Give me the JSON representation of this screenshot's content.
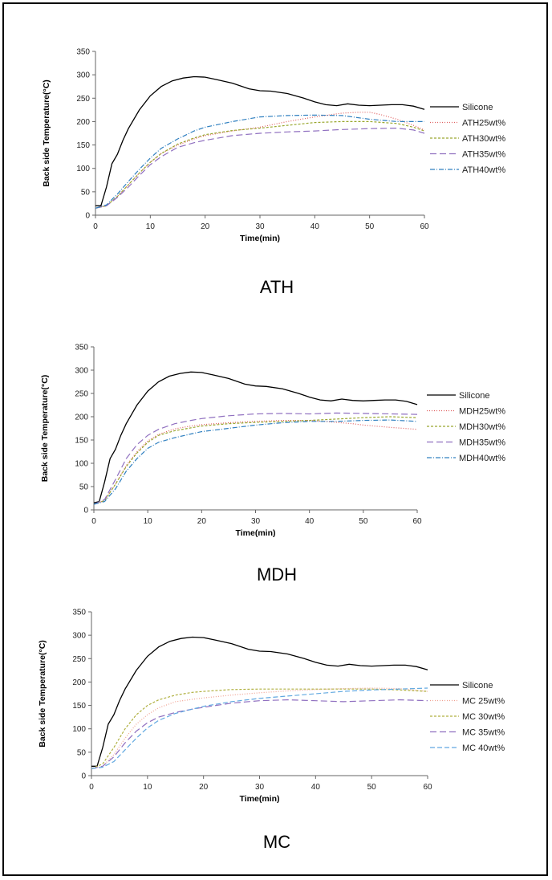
{
  "chart_data": [
    {
      "type": "line",
      "caption": "ATH",
      "xlabel": "Time(min)",
      "ylabel": "Back side Temperature(°C)",
      "xlim": [
        0,
        60
      ],
      "ylim": [
        0,
        350
      ],
      "xticks": [
        0,
        10,
        20,
        30,
        40,
        50,
        60
      ],
      "yticks": [
        0,
        50,
        100,
        150,
        200,
        250,
        300,
        350
      ],
      "legend_position": "right",
      "series": [
        {
          "name": "Silicone",
          "color": "#000000",
          "dash": "",
          "x": [
            0,
            1,
            2,
            3,
            4,
            5,
            6,
            8,
            10,
            12,
            14,
            16,
            18,
            20,
            22,
            25,
            28,
            30,
            32,
            35,
            38,
            40,
            42,
            44,
            46,
            48,
            50,
            52,
            54,
            56,
            58,
            60
          ],
          "y": [
            20,
            20,
            60,
            110,
            130,
            160,
            185,
            225,
            255,
            275,
            287,
            293,
            296,
            295,
            290,
            282,
            270,
            266,
            265,
            260,
            250,
            242,
            236,
            234,
            238,
            235,
            234,
            235,
            236,
            236,
            233,
            226
          ]
        },
        {
          "name": "ATH25wt%",
          "color": "#e06060",
          "dash": "1,2",
          "x": [
            0,
            2,
            4,
            6,
            8,
            10,
            12,
            15,
            18,
            20,
            25,
            30,
            35,
            40,
            45,
            48,
            50,
            52,
            55,
            58,
            60
          ],
          "y": [
            15,
            20,
            40,
            65,
            90,
            113,
            132,
            150,
            163,
            170,
            180,
            188,
            200,
            210,
            218,
            220,
            220,
            215,
            205,
            192,
            182
          ]
        },
        {
          "name": "ATH30wt%",
          "color": "#9aa830",
          "dash": "3,2",
          "x": [
            0,
            2,
            4,
            6,
            8,
            10,
            12,
            15,
            18,
            20,
            25,
            30,
            35,
            40,
            45,
            50,
            55,
            58,
            60
          ],
          "y": [
            15,
            20,
            40,
            65,
            90,
            113,
            132,
            152,
            165,
            172,
            181,
            186,
            192,
            198,
            200,
            200,
            196,
            188,
            180
          ]
        },
        {
          "name": "ATH35wt%",
          "color": "#9070c0",
          "dash": "8,4",
          "x": [
            0,
            2,
            4,
            6,
            8,
            10,
            12,
            15,
            18,
            20,
            25,
            30,
            35,
            40,
            45,
            50,
            55,
            58,
            60
          ],
          "y": [
            15,
            20,
            38,
            60,
            85,
            108,
            125,
            145,
            155,
            160,
            170,
            175,
            178,
            180,
            183,
            185,
            186,
            182,
            175
          ]
        },
        {
          "name": "ATH40wt%",
          "color": "#3080c0",
          "dash": "6,2,1,2",
          "x": [
            0,
            2,
            4,
            6,
            8,
            10,
            12,
            15,
            18,
            20,
            25,
            30,
            35,
            40,
            45,
            50,
            55,
            58,
            60
          ],
          "y": [
            15,
            22,
            45,
            72,
            98,
            122,
            143,
            163,
            180,
            188,
            200,
            210,
            213,
            214,
            213,
            205,
            200,
            200,
            200
          ]
        }
      ]
    },
    {
      "type": "line",
      "caption": "MDH",
      "xlabel": "Time(min)",
      "ylabel": "Back side Temperature(°C)",
      "xlim": [
        0,
        60
      ],
      "ylim": [
        0,
        350
      ],
      "xticks": [
        0,
        10,
        20,
        30,
        40,
        50,
        60
      ],
      "yticks": [
        0,
        50,
        100,
        150,
        200,
        250,
        300,
        350
      ],
      "legend_position": "right",
      "series": [
        {
          "name": "Silicone",
          "color": "#000000",
          "dash": "",
          "x": [
            0,
            1,
            2,
            3,
            4,
            5,
            6,
            8,
            10,
            12,
            14,
            16,
            18,
            20,
            22,
            25,
            28,
            30,
            32,
            35,
            38,
            40,
            42,
            44,
            46,
            48,
            50,
            52,
            54,
            56,
            58,
            60
          ],
          "y": [
            15,
            18,
            60,
            110,
            130,
            160,
            185,
            225,
            255,
            275,
            287,
            293,
            296,
            295,
            290,
            282,
            270,
            266,
            265,
            260,
            250,
            242,
            236,
            234,
            238,
            235,
            234,
            235,
            236,
            236,
            233,
            226
          ]
        },
        {
          "name": "MDH25wt%",
          "color": "#e06060",
          "dash": "1,2",
          "x": [
            0,
            2,
            4,
            6,
            8,
            10,
            12,
            15,
            18,
            20,
            25,
            30,
            35,
            40,
            45,
            48,
            50,
            55,
            60
          ],
          "y": [
            12,
            20,
            55,
            95,
            125,
            148,
            162,
            174,
            180,
            183,
            187,
            190,
            192,
            192,
            188,
            185,
            182,
            177,
            173
          ]
        },
        {
          "name": "MDH30wt%",
          "color": "#9aa830",
          "dash": "3,2",
          "x": [
            0,
            2,
            4,
            6,
            8,
            10,
            12,
            15,
            18,
            20,
            25,
            30,
            35,
            40,
            45,
            50,
            55,
            60
          ],
          "y": [
            12,
            20,
            55,
            93,
            122,
            145,
            160,
            170,
            176,
            180,
            185,
            188,
            190,
            192,
            195,
            198,
            200,
            198
          ]
        },
        {
          "name": "MDH35wt%",
          "color": "#9070c0",
          "dash": "8,4",
          "x": [
            0,
            2,
            4,
            6,
            8,
            10,
            12,
            15,
            18,
            20,
            25,
            30,
            35,
            40,
            45,
            50,
            55,
            60
          ],
          "y": [
            12,
            22,
            65,
            110,
            140,
            160,
            173,
            185,
            192,
            196,
            202,
            206,
            207,
            206,
            208,
            207,
            206,
            205
          ]
        },
        {
          "name": "MDH40wt%",
          "color": "#3080c0",
          "dash": "6,2,1,2",
          "x": [
            0,
            2,
            4,
            6,
            8,
            10,
            12,
            15,
            18,
            20,
            25,
            30,
            35,
            40,
            45,
            50,
            55,
            60
          ],
          "y": [
            12,
            18,
            45,
            83,
            110,
            132,
            145,
            155,
            163,
            168,
            175,
            182,
            187,
            190,
            190,
            192,
            193,
            190
          ]
        }
      ]
    },
    {
      "type": "line",
      "caption": "MC",
      "xlabel": "Time(min)",
      "ylabel": "Back side Temperature(°C)",
      "xlim": [
        0,
        60
      ],
      "ylim": [
        0,
        350
      ],
      "xticks": [
        0,
        10,
        20,
        30,
        40,
        50,
        60
      ],
      "yticks": [
        0,
        50,
        100,
        150,
        200,
        250,
        300,
        350
      ],
      "legend_position": "right",
      "series": [
        {
          "name": "Silicone",
          "color": "#000000",
          "dash": "",
          "x": [
            0,
            1,
            2,
            3,
            4,
            5,
            6,
            8,
            10,
            12,
            14,
            16,
            18,
            20,
            22,
            25,
            28,
            30,
            32,
            35,
            38,
            40,
            42,
            44,
            46,
            48,
            50,
            52,
            54,
            56,
            58,
            60
          ],
          "y": [
            20,
            20,
            60,
            110,
            130,
            160,
            185,
            225,
            255,
            275,
            287,
            293,
            296,
            295,
            290,
            282,
            270,
            266,
            265,
            260,
            250,
            242,
            236,
            234,
            238,
            235,
            234,
            235,
            236,
            236,
            233,
            226
          ]
        },
        {
          "name": "MC 25wt%",
          "color": "#f0a090",
          "dash": "1,2",
          "x": [
            0,
            2,
            4,
            6,
            8,
            10,
            12,
            15,
            18,
            20,
            25,
            30,
            35,
            40,
            45,
            50,
            55,
            60
          ],
          "y": [
            15,
            20,
            45,
            80,
            110,
            130,
            145,
            158,
            163,
            166,
            172,
            177,
            181,
            184,
            186,
            187,
            186,
            180
          ]
        },
        {
          "name": "MC 30wt%",
          "color": "#b0b040",
          "dash": "3,2",
          "x": [
            0,
            2,
            4,
            6,
            8,
            10,
            12,
            15,
            18,
            20,
            25,
            30,
            35,
            40,
            45,
            50,
            55,
            60
          ],
          "y": [
            15,
            25,
            60,
            100,
            130,
            150,
            162,
            172,
            178,
            180,
            184,
            185,
            185,
            185,
            185,
            185,
            183,
            180
          ]
        },
        {
          "name": "MC 35wt%",
          "color": "#9070c0",
          "dash": "8,4",
          "x": [
            0,
            2,
            4,
            6,
            8,
            10,
            12,
            15,
            18,
            20,
            25,
            30,
            35,
            40,
            45,
            50,
            55,
            60
          ],
          "y": [
            15,
            20,
            40,
            70,
            95,
            113,
            125,
            135,
            142,
            146,
            155,
            160,
            162,
            160,
            158,
            160,
            162,
            160
          ]
        },
        {
          "name": "MC 40wt%",
          "color": "#60a8e0",
          "dash": "6,3",
          "x": [
            0,
            2,
            4,
            6,
            8,
            10,
            12,
            15,
            18,
            20,
            25,
            30,
            35,
            40,
            45,
            50,
            55,
            60
          ],
          "y": [
            15,
            18,
            30,
            55,
            80,
            102,
            118,
            133,
            142,
            148,
            158,
            165,
            170,
            175,
            180,
            183,
            185,
            187
          ]
        }
      ]
    }
  ]
}
